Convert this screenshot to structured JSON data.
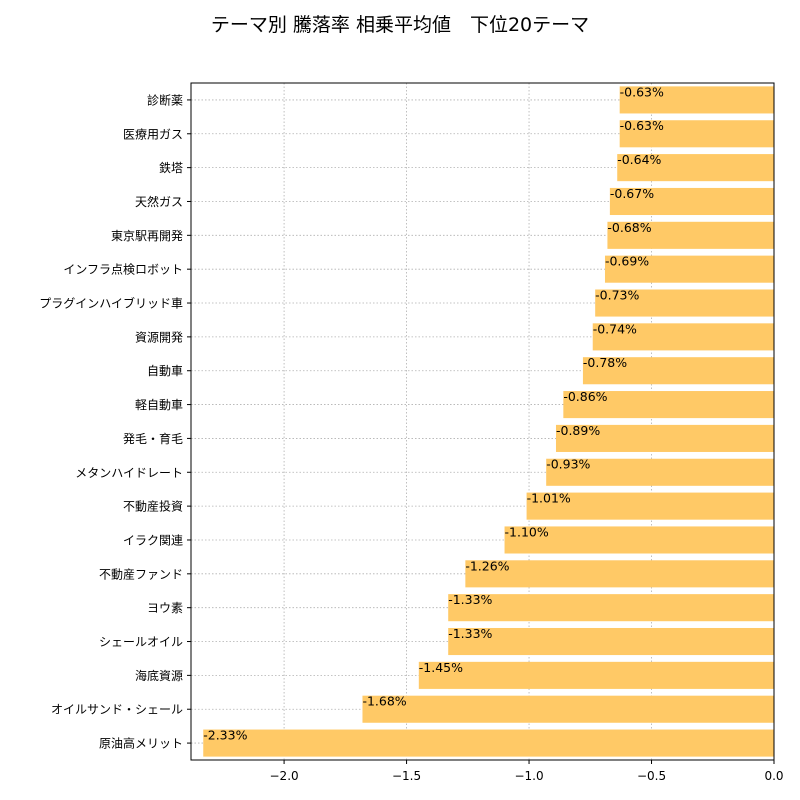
{
  "chart_data": {
    "type": "bar",
    "orientation": "horizontal",
    "title": "テーマ別 騰落率 相乗平均値　下位20テーマ",
    "xlabel": "",
    "ylabel": "",
    "xlim": [
      -2.38,
      0.0
    ],
    "xticks": [
      -2.0,
      -1.5,
      -1.0,
      -0.5,
      0.0
    ],
    "xtick_labels": [
      "−2.0",
      "−1.5",
      "−1.0",
      "−0.5",
      "0.0"
    ],
    "grid": true,
    "bar_color": "#FFC966",
    "categories": [
      "診断薬",
      "医療用ガス",
      "鉄塔",
      "天然ガス",
      "東京駅再開発",
      "インフラ点検ロボット",
      "プラグインハイブリッド車",
      "資源開発",
      "自動車",
      "軽自動車",
      "発毛・育毛",
      "メタンハイドレート",
      "不動産投資",
      "イラク関連",
      "不動産ファンド",
      "ヨウ素",
      "シェールオイル",
      "海底資源",
      "オイルサンド・シェール",
      "原油高メリット"
    ],
    "values": [
      -0.63,
      -0.63,
      -0.64,
      -0.67,
      -0.68,
      -0.69,
      -0.73,
      -0.74,
      -0.78,
      -0.86,
      -0.89,
      -0.93,
      -1.01,
      -1.1,
      -1.26,
      -1.33,
      -1.33,
      -1.45,
      -1.68,
      -2.33
    ],
    "data_labels": [
      "-0.63%",
      "-0.63%",
      "-0.64%",
      "-0.67%",
      "-0.68%",
      "-0.69%",
      "-0.73%",
      "-0.74%",
      "-0.78%",
      "-0.86%",
      "-0.89%",
      "-0.93%",
      "-1.01%",
      "-1.10%",
      "-1.26%",
      "-1.33%",
      "-1.33%",
      "-1.45%",
      "-1.68%",
      "-2.33%"
    ]
  }
}
